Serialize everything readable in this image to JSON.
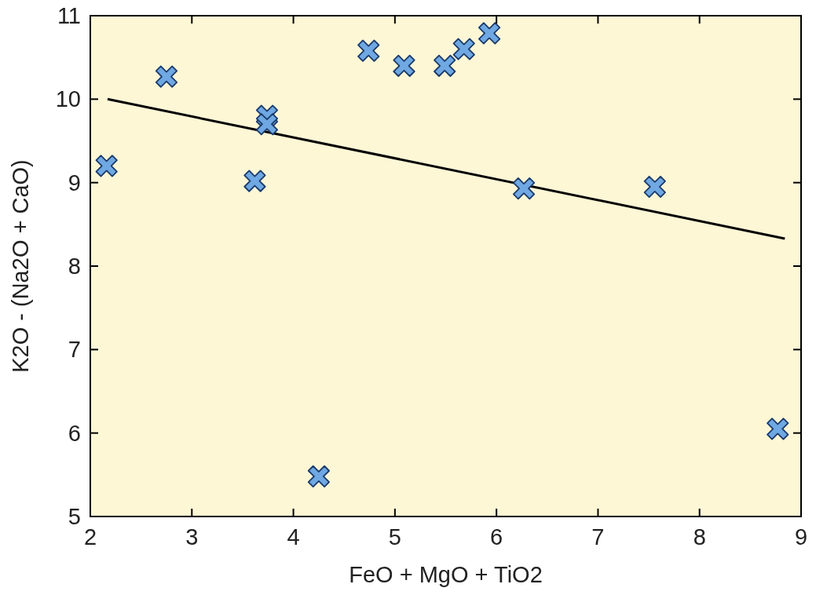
{
  "chart_data": {
    "type": "scatter",
    "xlabel": "FeO + MgO + TiO2",
    "ylabel": "K2O - (Na2O + CaO)",
    "xlim": [
      2,
      9
    ],
    "ylim": [
      5,
      11
    ],
    "xticks": [
      2,
      3,
      4,
      5,
      6,
      7,
      8,
      9
    ],
    "yticks": [
      5,
      6,
      7,
      8,
      9,
      10,
      11
    ],
    "grid": false,
    "series": [
      {
        "marker": "cross",
        "color": "#6fa8e2",
        "x": [
          2.16,
          2.75,
          3.62,
          3.74,
          3.74,
          4.25,
          4.74,
          5.09,
          5.49,
          5.68,
          5.93,
          6.27,
          7.56,
          8.77
        ],
        "values": [
          9.2,
          10.27,
          9.02,
          9.8,
          9.7,
          5.48,
          10.58,
          10.4,
          10.4,
          10.6,
          10.79,
          8.93,
          8.95,
          6.05
        ]
      },
      {
        "type": "line",
        "marker": "none",
        "color": "#000000",
        "x": [
          2.17,
          8.84
        ],
        "values": [
          10.0,
          8.33
        ]
      }
    ]
  }
}
